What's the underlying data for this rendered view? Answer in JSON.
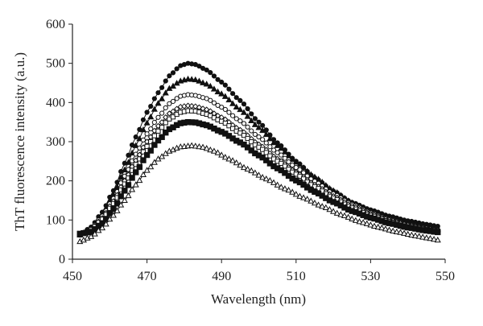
{
  "chart_data": {
    "type": "line",
    "title": "",
    "xlabel": "Wavelength (nm)",
    "ylabel": "ThT fluorescence intensity (a.u.)",
    "xlim": [
      450,
      550
    ],
    "ylim": [
      0,
      600
    ],
    "x_ticks": [
      "450",
      "470",
      "490",
      "510",
      "530",
      "550"
    ],
    "y_ticks": [
      "0",
      "100",
      "200",
      "300",
      "400",
      "500",
      "600"
    ],
    "grid": false,
    "legend": "none",
    "line_color": "#111111",
    "x_start": 452,
    "x_end": 548,
    "x_step": 1,
    "series": [
      {
        "marker": "filled-circle",
        "peak_x": 481,
        "keypoints": [
          [
            452,
            62
          ],
          [
            455,
            82
          ],
          [
            458,
            120
          ],
          [
            461,
            175
          ],
          [
            464,
            245
          ],
          [
            467,
            312
          ],
          [
            470,
            375
          ],
          [
            473,
            425
          ],
          [
            476,
            468
          ],
          [
            479,
            494
          ],
          [
            481,
            500
          ],
          [
            483,
            497
          ],
          [
            486,
            483
          ],
          [
            490,
            452
          ],
          [
            495,
            405
          ],
          [
            500,
            350
          ],
          [
            505,
            297
          ],
          [
            510,
            250
          ],
          [
            515,
            208
          ],
          [
            520,
            174
          ],
          [
            525,
            145
          ],
          [
            530,
            126
          ],
          [
            535,
            110
          ],
          [
            540,
            98
          ],
          [
            545,
            89
          ],
          [
            548,
            84
          ]
        ]
      },
      {
        "marker": "filled-triangle",
        "peak_x": 481,
        "keypoints": [
          [
            452,
            62
          ],
          [
            455,
            80
          ],
          [
            458,
            115
          ],
          [
            461,
            165
          ],
          [
            464,
            228
          ],
          [
            467,
            290
          ],
          [
            470,
            348
          ],
          [
            473,
            398
          ],
          [
            476,
            436
          ],
          [
            479,
            455
          ],
          [
            481,
            460
          ],
          [
            483,
            458
          ],
          [
            486,
            447
          ],
          [
            490,
            422
          ],
          [
            495,
            382
          ],
          [
            500,
            336
          ],
          [
            505,
            290
          ],
          [
            510,
            248
          ],
          [
            515,
            210
          ],
          [
            520,
            175
          ],
          [
            525,
            144
          ],
          [
            530,
            122
          ],
          [
            535,
            104
          ],
          [
            540,
            90
          ],
          [
            545,
            80
          ],
          [
            548,
            76
          ]
        ]
      },
      {
        "marker": "open-circle",
        "peak_x": 481,
        "keypoints": [
          [
            452,
            62
          ],
          [
            455,
            78
          ],
          [
            458,
            110
          ],
          [
            461,
            155
          ],
          [
            464,
            212
          ],
          [
            467,
            268
          ],
          [
            470,
            320
          ],
          [
            473,
            362
          ],
          [
            476,
            397
          ],
          [
            479,
            416
          ],
          [
            481,
            420
          ],
          [
            483,
            418
          ],
          [
            486,
            410
          ],
          [
            490,
            388
          ],
          [
            495,
            353
          ],
          [
            500,
            312
          ],
          [
            505,
            272
          ],
          [
            510,
            234
          ],
          [
            515,
            199
          ],
          [
            520,
            167
          ],
          [
            525,
            140
          ],
          [
            530,
            119
          ],
          [
            535,
            102
          ],
          [
            540,
            89
          ],
          [
            545,
            80
          ],
          [
            548,
            75
          ]
        ]
      },
      {
        "marker": "open-diamond",
        "peak_x": 481,
        "keypoints": [
          [
            452,
            62
          ],
          [
            455,
            76
          ],
          [
            458,
            105
          ],
          [
            461,
            148
          ],
          [
            464,
            200
          ],
          [
            467,
            252
          ],
          [
            470,
            300
          ],
          [
            473,
            340
          ],
          [
            476,
            372
          ],
          [
            479,
            389
          ],
          [
            481,
            392
          ],
          [
            483,
            390
          ],
          [
            486,
            382
          ],
          [
            490,
            362
          ],
          [
            495,
            330
          ],
          [
            500,
            293
          ],
          [
            505,
            256
          ],
          [
            510,
            222
          ],
          [
            515,
            190
          ],
          [
            520,
            161
          ],
          [
            525,
            136
          ],
          [
            530,
            116
          ],
          [
            535,
            100
          ],
          [
            540,
            88
          ],
          [
            545,
            79
          ],
          [
            548,
            74
          ]
        ]
      },
      {
        "marker": "open-square",
        "peak_x": 481,
        "keypoints": [
          [
            452,
            62
          ],
          [
            455,
            75
          ],
          [
            458,
            102
          ],
          [
            461,
            142
          ],
          [
            464,
            192
          ],
          [
            467,
            242
          ],
          [
            470,
            288
          ],
          [
            473,
            327
          ],
          [
            476,
            358
          ],
          [
            479,
            375
          ],
          [
            481,
            379
          ],
          [
            483,
            378
          ],
          [
            486,
            370
          ],
          [
            490,
            352
          ],
          [
            495,
            322
          ],
          [
            500,
            286
          ],
          [
            505,
            250
          ],
          [
            510,
            217
          ],
          [
            515,
            185
          ],
          [
            520,
            156
          ],
          [
            525,
            131
          ],
          [
            530,
            112
          ],
          [
            535,
            96
          ],
          [
            540,
            85
          ],
          [
            545,
            76
          ],
          [
            548,
            72
          ]
        ]
      },
      {
        "marker": "filled-square",
        "peak_x": 481,
        "keypoints": [
          [
            452,
            65
          ],
          [
            455,
            70
          ],
          [
            458,
            92
          ],
          [
            461,
            128
          ],
          [
            464,
            175
          ],
          [
            467,
            222
          ],
          [
            470,
            266
          ],
          [
            473,
            303
          ],
          [
            476,
            332
          ],
          [
            479,
            347
          ],
          [
            481,
            350
          ],
          [
            483,
            349
          ],
          [
            486,
            342
          ],
          [
            490,
            325
          ],
          [
            495,
            298
          ],
          [
            500,
            265
          ],
          [
            505,
            232
          ],
          [
            510,
            201
          ],
          [
            515,
            172
          ],
          [
            520,
            146
          ],
          [
            525,
            123
          ],
          [
            530,
            106
          ],
          [
            535,
            92
          ],
          [
            540,
            81
          ],
          [
            545,
            73
          ],
          [
            548,
            69
          ]
        ]
      },
      {
        "marker": "open-triangle",
        "peak_x": 482,
        "keypoints": [
          [
            452,
            45
          ],
          [
            455,
            58
          ],
          [
            458,
            80
          ],
          [
            461,
            112
          ],
          [
            464,
            150
          ],
          [
            467,
            190
          ],
          [
            470,
            227
          ],
          [
            473,
            256
          ],
          [
            476,
            276
          ],
          [
            479,
            287
          ],
          [
            482,
            290
          ],
          [
            485,
            286
          ],
          [
            488,
            276
          ],
          [
            492,
            256
          ],
          [
            497,
            230
          ],
          [
            502,
            205
          ],
          [
            507,
            180
          ],
          [
            512,
            157
          ],
          [
            517,
            135
          ],
          [
            522,
            114
          ],
          [
            527,
            96
          ],
          [
            532,
            82
          ],
          [
            537,
            70
          ],
          [
            542,
            60
          ],
          [
            546,
            53
          ],
          [
            548,
            49
          ]
        ]
      }
    ]
  }
}
